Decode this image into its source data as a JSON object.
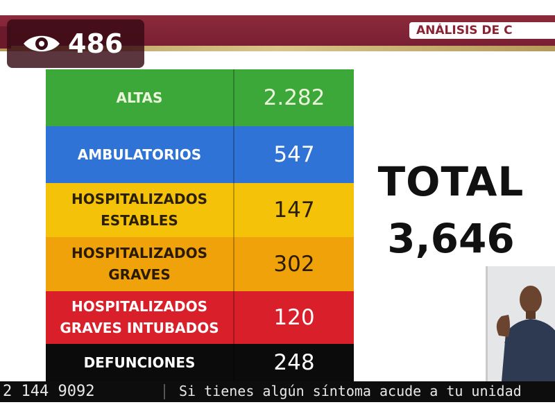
{
  "header": {
    "title": "ANÁLISIS DE C"
  },
  "view_counter": {
    "icon": "eye-icon",
    "count": "486"
  },
  "stats": {
    "rows": [
      {
        "label": "ALTAS",
        "value": "2.282",
        "color": "#3da83a"
      },
      {
        "label": "AMBULATORIOS",
        "value": "547",
        "color": "#2f73d6"
      },
      {
        "label": "HOSPITALIZADOS\nESTABLES",
        "value": "147",
        "color": "#f5c20a"
      },
      {
        "label": "HOSPITALIZADOS\nGRAVES",
        "value": "302",
        "color": "#f0a20a"
      },
      {
        "label": "HOSPITALIZADOS\nGRAVES INTUBADOS",
        "value": "120",
        "color": "#d9202a"
      },
      {
        "label": "DEFUNCIONES",
        "value": "248",
        "color": "#0b0b0b"
      }
    ]
  },
  "total": {
    "label": "TOTAL",
    "value": "3,646"
  },
  "ticker": {
    "phone": "2 144 9092",
    "message": "Si tienes algún síntoma acude a tu unidad"
  }
}
